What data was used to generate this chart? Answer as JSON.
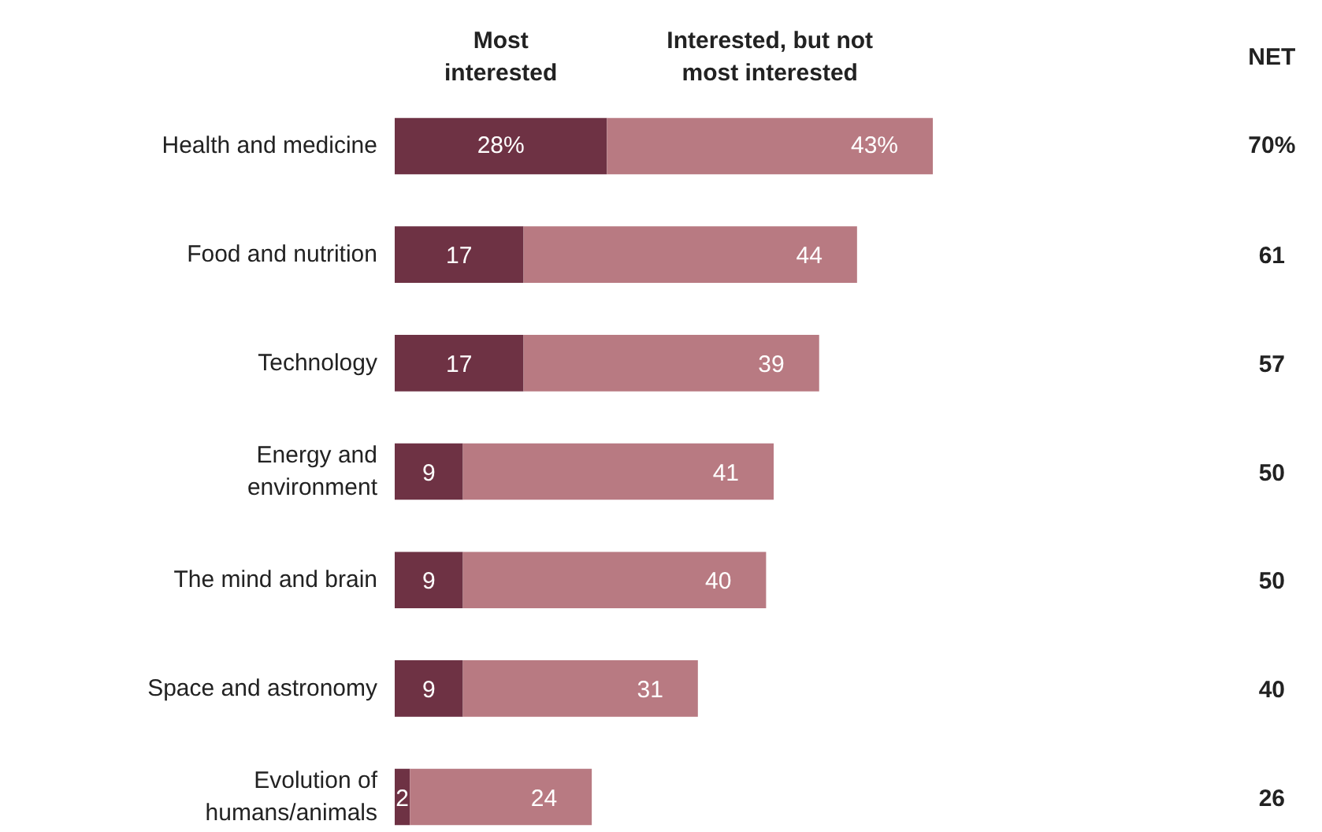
{
  "chart_data": {
    "type": "bar",
    "orientation": "horizontal",
    "stacked": true,
    "categories": [
      "Health and medicine",
      "Food and nutrition",
      "Technology",
      "Energy and environment",
      "The mind and brain",
      "Space and astronomy",
      "Evolution of humans/animals"
    ],
    "series": [
      {
        "name": "Most interested",
        "color": "#6e3244",
        "values": [
          28,
          17,
          17,
          9,
          9,
          9,
          2
        ],
        "value_labels": [
          "28%",
          "17",
          "17",
          "9",
          "9",
          "9",
          "2"
        ]
      },
      {
        "name": "Interested, but not most interested",
        "color": "#b87a82",
        "values": [
          43,
          44,
          39,
          41,
          40,
          31,
          24
        ],
        "value_labels": [
          "43%",
          "44",
          "39",
          "41",
          "40",
          "31",
          "24"
        ]
      }
    ],
    "annotations": [
      "NET",
      "70%",
      "61",
      "57",
      "50",
      "50",
      "40",
      "26"
    ],
    "data_labels": true,
    "grid": false
  }
}
